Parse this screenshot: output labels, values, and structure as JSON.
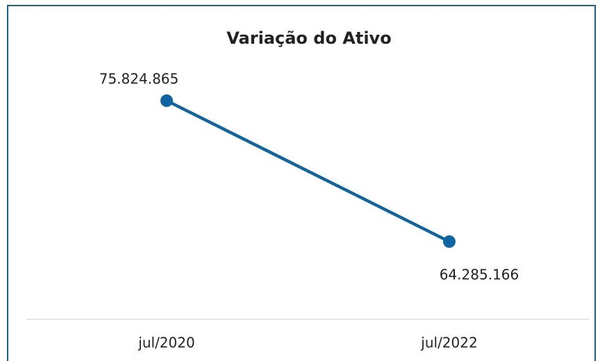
{
  "chart_data": {
    "type": "line",
    "title": "Variação do Ativo",
    "categories": [
      "jul/2020",
      "jul/2022"
    ],
    "series": [
      {
        "name": null,
        "color": "#0f65a1",
        "values": [
          75824865,
          64285166
        ],
        "value_labels": [
          "75.824.865",
          "64.285.166"
        ]
      }
    ]
  }
}
